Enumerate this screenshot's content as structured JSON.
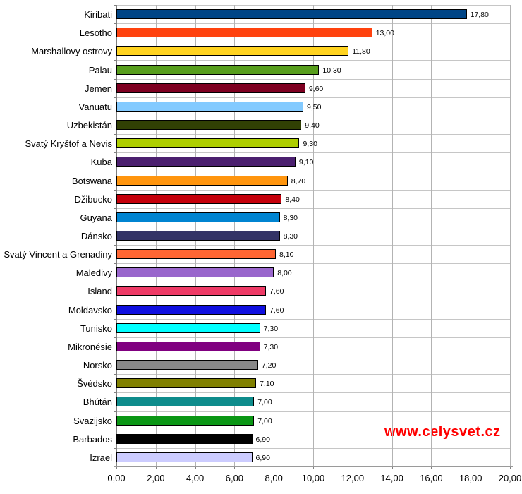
{
  "watermark": {
    "text": "www.celysvet.cz",
    "color": "#ff0000"
  },
  "chart_data": {
    "type": "bar",
    "orientation": "horizontal",
    "title": "",
    "xlabel": "",
    "ylabel": "",
    "xlim": [
      0,
      20
    ],
    "grid": true,
    "decimal_separator": ",",
    "categories": [
      "Kiribati",
      "Lesotho",
      "Marshallovy ostrovy",
      "Palau",
      "Jemen",
      "Vanuatu",
      "Uzbekistán",
      "Svatý Kryštof a Nevis",
      "Kuba",
      "Botswana",
      "Džibucko",
      "Guyana",
      "Dánsko",
      "Svatý Vincent a Grenadiny",
      "Maledivy",
      "Island",
      "Moldavsko",
      "Tunisko",
      "Mikronésie",
      "Norsko",
      "Švédsko",
      "Bhútán",
      "Svazijsko",
      "Barbados",
      "Izrael"
    ],
    "values": [
      17.8,
      13.0,
      11.8,
      10.3,
      9.6,
      9.5,
      9.4,
      9.3,
      9.1,
      8.7,
      8.4,
      8.3,
      8.3,
      8.1,
      8.0,
      7.6,
      7.6,
      7.3,
      7.3,
      7.2,
      7.1,
      7.0,
      7.0,
      6.9,
      6.9
    ],
    "value_labels": [
      "17,80",
      "13,00",
      "11,80",
      "10,30",
      "9,60",
      "9,50",
      "9,40",
      "9,30",
      "9,10",
      "8,70",
      "8,40",
      "8,30",
      "8,30",
      "8,10",
      "8,00",
      "7,60",
      "7,60",
      "7,30",
      "7,30",
      "7,20",
      "7,10",
      "7,00",
      "7,00",
      "6,90",
      "6,90"
    ],
    "bar_colors": [
      "#004586",
      "#ff420e",
      "#ffd320",
      "#579d1c",
      "#7e0021",
      "#83caff",
      "#314004",
      "#aecf00",
      "#4b1f6f",
      "#ff950e",
      "#c5000b",
      "#0084d1",
      "#333366",
      "#ff6633",
      "#9966cc",
      "#ee3a66",
      "#0f0fe0",
      "#00ffff",
      "#800080",
      "#888888",
      "#808000",
      "#0e8c8c",
      "#0a9614",
      "#000000",
      "#ccccff"
    ],
    "x_ticks": [
      0,
      2,
      4,
      6,
      8,
      10,
      12,
      14,
      16,
      18,
      20
    ],
    "x_tick_labels": [
      "0,00",
      "2,00",
      "4,00",
      "6,00",
      "8,00",
      "10,00",
      "12,00",
      "14,00",
      "16,00",
      "18,00",
      "20,00"
    ],
    "legend": "none",
    "colors": {
      "background": "#ffffff",
      "gridline": "#b3b3b3",
      "axis": "#808080",
      "bar_border": "#000000",
      "text": "#000000"
    }
  }
}
